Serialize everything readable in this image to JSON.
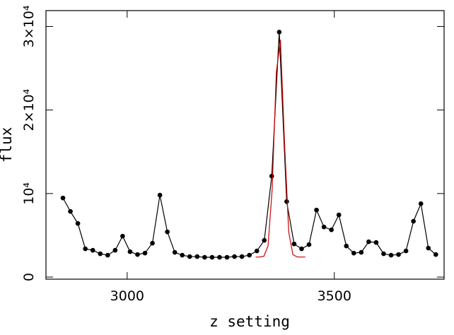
{
  "chart_data": {
    "type": "line",
    "x_label": "z setting",
    "y_label": "flux",
    "xlim": [
      2804,
      3765
    ],
    "ylim": [
      -250,
      31900
    ],
    "xticks": [
      3000,
      3500
    ],
    "yticks": [
      0,
      {
        "value": 10000,
        "label": "10⁴"
      },
      {
        "value": 20000,
        "label": "2×10⁴"
      },
      {
        "value": 30000,
        "label": "3×10⁴"
      }
    ],
    "series": [
      {
        "color": "#000000",
        "markers": true,
        "x": [
          2845,
          2863,
          2881,
          2899,
          2917,
          2935,
          2953,
          2971,
          2989,
          3007,
          3025,
          3043,
          3061,
          3079,
          3097,
          3115,
          3133,
          3151,
          3169,
          3187,
          3205,
          3223,
          3241,
          3259,
          3277,
          3295,
          3313,
          3331,
          3349,
          3367,
          3385,
          3403,
          3421,
          3439,
          3457,
          3475,
          3493,
          3511,
          3529,
          3547,
          3565,
          3583,
          3601,
          3619,
          3637,
          3655,
          3673,
          3691,
          3709,
          3727,
          3745
        ],
        "values": [
          9470,
          7860,
          6420,
          3380,
          3210,
          2790,
          2620,
          3210,
          4900,
          3040,
          2700,
          2870,
          4060,
          9810,
          5410,
          2960,
          2620,
          2450,
          2450,
          2370,
          2370,
          2370,
          2370,
          2450,
          2450,
          2620,
          3130,
          4400,
          12090,
          29330,
          9040,
          3970,
          3380,
          3890,
          8030,
          6000,
          5660,
          7440,
          3720,
          2870,
          2960,
          4230,
          4140,
          2790,
          2620,
          2700,
          3130,
          6680,
          8790,
          3470,
          2700
        ]
      },
      {
        "color": "#cc0000",
        "markers": false,
        "x": [
          3310,
          3320,
          3330,
          3340,
          3350,
          3360,
          3370,
          3380,
          3390,
          3400,
          3410,
          3420,
          3430
        ],
        "values": [
          2400,
          2403,
          2494,
          3730,
          10500,
          24500,
          28400,
          15900,
          5370,
          2700,
          2414,
          2400,
          2400
        ]
      }
    ]
  }
}
